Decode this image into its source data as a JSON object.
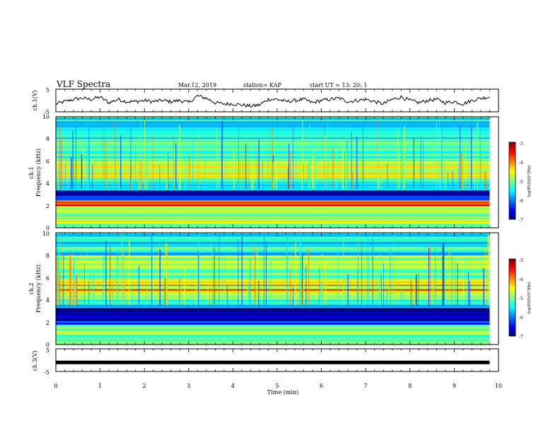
{
  "header": {
    "title": "VLF Spectra",
    "date": "Mar.12, 2019",
    "station": "station= KAP",
    "start": "start  UT =   13: 20: 1"
  },
  "colors": {
    "colormap": [
      "#00007f",
      "#0000ff",
      "#007fff",
      "#00ffff",
      "#7fff7f",
      "#ffff00",
      "#ff7f00",
      "#ff0000",
      "#7f0000"
    ],
    "trace": "#000000",
    "background": "#ffffff"
  },
  "chart_data": [
    {
      "type": "line",
      "panel": "ch1",
      "ylabel": "ch.1(V)",
      "xlim": [
        0,
        10
      ],
      "ylim": [
        -5,
        5
      ],
      "y_ticks": [
        "5",
        "-5"
      ],
      "x": [
        0,
        0.2,
        0.4,
        0.6,
        0.8,
        1.0,
        1.2,
        1.4,
        1.6,
        1.8,
        2.0,
        2.2,
        2.4,
        2.6,
        2.8,
        3.0,
        3.2,
        3.4,
        3.6,
        3.8,
        4.0,
        4.2,
        4.4,
        4.6,
        4.8,
        5.0,
        5.2,
        5.4,
        5.6,
        5.8,
        6.0,
        6.2,
        6.4,
        6.6,
        6.8,
        7.0,
        7.2,
        7.4,
        7.6,
        7.8,
        8.0,
        8.2,
        8.4,
        8.6,
        8.8,
        9.0,
        9.2,
        9.4,
        9.6,
        9.8
      ],
      "values": [
        -1.5,
        -0.5,
        0.5,
        1.0,
        0.5,
        1.5,
        -1.0,
        0.5,
        -0.5,
        -0.5,
        0.0,
        -0.5,
        0.0,
        -0.5,
        0.0,
        -1.0,
        2.0,
        1.0,
        -1.0,
        -1.5,
        -1.5,
        -2.0,
        -2.5,
        -2.0,
        0.5,
        0.5,
        -0.5,
        0.0,
        0.5,
        -1.0,
        0.0,
        0.5,
        1.0,
        -0.5,
        0.0,
        0.5,
        -0.5,
        -1.5,
        0.5,
        1.5,
        0.0,
        -1.0,
        0.0,
        0.5,
        -1.0,
        -0.5,
        -1.5,
        0.0,
        1.0,
        1.5
      ]
    },
    {
      "type": "heatmap",
      "panel": "ch1-spectrogram",
      "ylabel": "ch.1",
      "ylabel2": "Frequency  (kHz)",
      "xlim": [
        0,
        9.8
      ],
      "ylim": [
        0,
        10
      ],
      "y_ticks": [
        "0",
        "2",
        "4",
        "6",
        "8",
        "10"
      ],
      "colorbar": {
        "label": "log(PSD)(V²/Hz)",
        "ticks": [
          "-3",
          "-4",
          "-5",
          "-6",
          "-7"
        ],
        "range": [
          -7,
          -3
        ]
      },
      "bands": [
        {
          "f_low": 0.0,
          "f_high": 1.5,
          "log_psd": -4.8
        },
        {
          "f_low": 1.5,
          "f_high": 2.0,
          "log_psd": -5.0
        },
        {
          "f_low": 2.0,
          "f_high": 2.5,
          "log_psd": -3.8
        },
        {
          "f_low": 2.5,
          "f_high": 2.9,
          "log_psd": -6.2
        },
        {
          "f_low": 2.9,
          "f_high": 3.4,
          "log_psd": -6.9
        },
        {
          "f_low": 3.4,
          "f_high": 4.5,
          "log_psd": -5.5
        },
        {
          "f_low": 4.5,
          "f_high": 6.0,
          "log_psd": -4.8
        },
        {
          "f_low": 6.0,
          "f_high": 8.0,
          "log_psd": -5.1
        },
        {
          "f_low": 8.0,
          "f_high": 10.0,
          "log_psd": -5.6
        }
      ],
      "lines_khz": [
        {
          "f": 2.0,
          "log_psd": -3.2
        },
        {
          "f": 2.3,
          "log_psd": -3.6
        },
        {
          "f": 4.9,
          "log_psd": -4.2
        },
        {
          "f": 5.6,
          "log_psd": -4.3
        }
      ]
    },
    {
      "type": "heatmap",
      "panel": "ch2-spectrogram",
      "ylabel": "ch.2",
      "ylabel2": "Frequency  (kHz)",
      "xlim": [
        0,
        9.8
      ],
      "ylim": [
        0,
        10
      ],
      "y_ticks": [
        "0",
        "2",
        "4",
        "6",
        "8",
        "10"
      ],
      "colorbar": {
        "label": "log(PSD)(V²/Hz)",
        "ticks": [
          "-3",
          "-4",
          "-5",
          "-6",
          "-7"
        ],
        "range": [
          -7,
          -3
        ]
      },
      "bands": [
        {
          "f_low": 0.0,
          "f_high": 1.8,
          "log_psd": -5.2
        },
        {
          "f_low": 1.8,
          "f_high": 2.1,
          "log_psd": -6.3
        },
        {
          "f_low": 2.1,
          "f_high": 3.3,
          "log_psd": -6.9
        },
        {
          "f_low": 3.3,
          "f_high": 4.0,
          "log_psd": -5.6
        },
        {
          "f_low": 4.0,
          "f_high": 6.0,
          "log_psd": -4.7
        },
        {
          "f_low": 6.0,
          "f_high": 8.0,
          "log_psd": -5.0
        },
        {
          "f_low": 8.0,
          "f_high": 10.0,
          "log_psd": -5.5
        }
      ],
      "lines_khz": [
        {
          "f": 4.9,
          "log_psd": -3.4
        },
        {
          "f": 5.3,
          "log_psd": -3.8
        },
        {
          "f": 5.6,
          "log_psd": -4.3
        }
      ]
    },
    {
      "type": "line",
      "panel": "ch3",
      "ylabel": "ch.3(V)",
      "xlabel": "Time  (min)",
      "xlim": [
        0,
        10
      ],
      "ylim": [
        -5,
        5
      ],
      "y_ticks": [
        "5",
        "-5"
      ],
      "x_ticks": [
        "0",
        "1",
        "2",
        "3",
        "4",
        "5",
        "6",
        "7",
        "8",
        "9",
        "10"
      ],
      "x": [
        0,
        9.8
      ],
      "values": [
        -1,
        -1
      ]
    }
  ]
}
